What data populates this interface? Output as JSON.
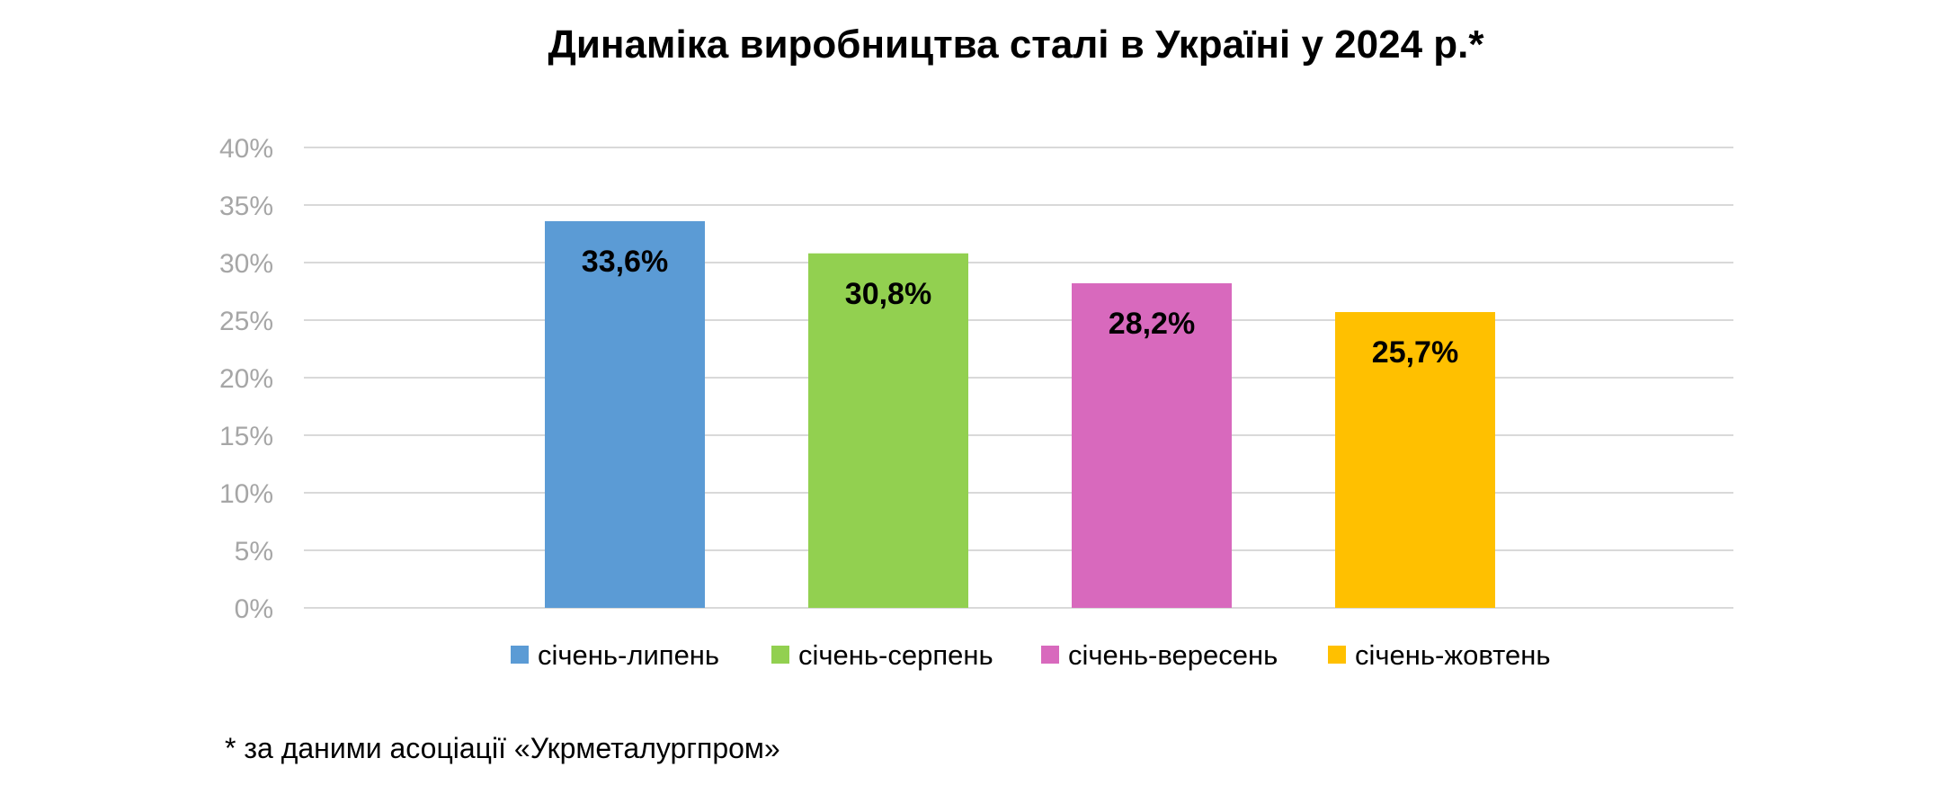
{
  "chart_data": {
    "type": "bar",
    "title": "Динаміка виробництва сталі в Україні у 2024 р.*",
    "xlabel": "",
    "ylabel": "",
    "ylim": [
      0,
      40
    ],
    "y_ticks": [
      0,
      5,
      10,
      15,
      20,
      25,
      30,
      35,
      40
    ],
    "y_tick_labels": [
      "0%",
      "5%",
      "10%",
      "15%",
      "20%",
      "25%",
      "30%",
      "35%",
      "40%"
    ],
    "grid": true,
    "legend_position": "bottom",
    "series": [
      {
        "name": "січень-липень",
        "value": 33.6,
        "label": "33,6%",
        "color": "#5b9bd5"
      },
      {
        "name": "січень-серпень",
        "value": 30.8,
        "label": "30,8%",
        "color": "#92d050"
      },
      {
        "name": "січень-вересень",
        "value": 28.2,
        "label": "28,2%",
        "color": "#d869bd"
      },
      {
        "name": "січень-жовтень",
        "value": 25.7,
        "label": "25,7%",
        "color": "#ffc000"
      }
    ]
  },
  "footnote": "* за даними асоціації «Укрметалургпром»"
}
